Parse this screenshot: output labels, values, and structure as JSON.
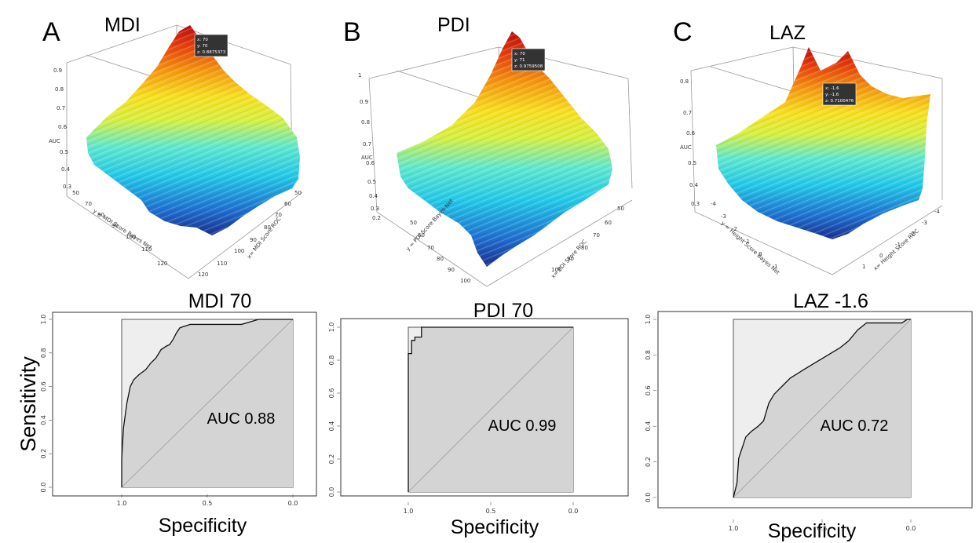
{
  "panels": [
    {
      "letter": "A",
      "surface_title": "MDI",
      "z_axis_label": "AUC",
      "z_ticks": [
        "0.9",
        "0.8",
        "0.7",
        "0.6",
        "0.5",
        "0.4",
        "0.3"
      ],
      "y_axis_label": "y = MDI Score Bayes Net",
      "x_axis_label": "x= MDI Score ROC",
      "y_ticks": [
        "50",
        "60",
        "70",
        "80",
        "90",
        "100",
        "110",
        "120"
      ],
      "x_ticks": [
        "50",
        "60",
        "70",
        "80",
        "90",
        "100",
        "110",
        "120"
      ],
      "tooltip": {
        "x": "x: 70",
        "y": "y: 70",
        "z": "z: 0.8875373"
      }
    },
    {
      "letter": "B",
      "surface_title": "PDI",
      "z_axis_label": "AUC",
      "z_ticks": [
        "1",
        "0.9",
        "0.8",
        "0.7",
        "0.6",
        "0.5",
        "0.4",
        "0.3",
        "0.2"
      ],
      "y_axis_label": "y = PDI Score Bayes Net",
      "x_axis_label": "x= PDI Score ROC",
      "y_ticks": [
        "50",
        "60",
        "70",
        "80",
        "90",
        "100"
      ],
      "x_ticks": [
        "50",
        "60",
        "70",
        "80",
        "90",
        "100"
      ],
      "tooltip": {
        "x": "x: 70",
        "y": "y: 71",
        "z": "z: 0.9759508"
      }
    },
    {
      "letter": "C",
      "surface_title": "LAZ",
      "z_axis_label": "AUC",
      "z_ticks": [
        "0.8",
        "0.7",
        "0.6",
        "0.5",
        "0.4",
        "0.3"
      ],
      "y_axis_label": "y = Height Score Bayes Net",
      "x_axis_label": "x= Height Score ROC",
      "y_ticks": [
        "-4",
        "-3",
        "-2",
        "-1",
        "0",
        "1"
      ],
      "x_ticks": [
        "-4",
        "-3",
        "-2",
        "-1",
        "0",
        "1"
      ],
      "tooltip": {
        "x": "x: -1.6",
        "y": "y: -1.6",
        "z": "z: 0.7100476"
      }
    }
  ],
  "shared_labels": {
    "sensitivity": "Sensitivity",
    "specificity": "Specificity"
  },
  "chart_data": [
    {
      "type": "line",
      "title": "MDI 70",
      "annotation": "AUC 0.88",
      "xlabel": "Specificity",
      "ylabel": "Sensitivity",
      "xlim": [
        1.0,
        0.0
      ],
      "ylim": [
        0.0,
        1.0
      ],
      "x_ticks": [
        "1.0",
        "0.5",
        "0.0"
      ],
      "y_ticks": [
        "0.0",
        "0.2",
        "0.4",
        "0.6",
        "0.8",
        "1.0"
      ],
      "reference_line": "diagonal",
      "x": [
        1.0,
        1.0,
        0.99,
        0.97,
        0.95,
        0.93,
        0.9,
        0.86,
        0.83,
        0.8,
        0.77,
        0.74,
        0.72,
        0.7,
        0.68,
        0.66,
        0.6,
        0.5,
        0.4,
        0.3,
        0.2,
        0.1,
        0.0
      ],
      "y": [
        0.0,
        0.17,
        0.35,
        0.5,
        0.6,
        0.64,
        0.67,
        0.7,
        0.74,
        0.77,
        0.82,
        0.84,
        0.85,
        0.88,
        0.92,
        0.95,
        0.97,
        0.97,
        0.97,
        0.97,
        1.0,
        1.0,
        1.0
      ]
    },
    {
      "type": "line",
      "title": "PDI 70",
      "annotation": "AUC 0.99",
      "xlabel": "Specificity",
      "ylabel": "",
      "xlim": [
        1.0,
        0.0
      ],
      "ylim": [
        0.0,
        1.0
      ],
      "x_ticks": [
        "1.0",
        "0.5",
        "0.0"
      ],
      "y_ticks": [
        "0.0",
        "0.2",
        "0.4",
        "0.6",
        "0.8",
        "1.0"
      ],
      "reference_line": "diagonal",
      "x": [
        1.0,
        1.0,
        0.98,
        0.98,
        0.96,
        0.96,
        0.92,
        0.92,
        0.5,
        0.0
      ],
      "y": [
        0.0,
        0.84,
        0.84,
        0.92,
        0.92,
        0.94,
        0.94,
        1.0,
        1.0,
        1.0
      ]
    },
    {
      "type": "line",
      "title": "LAZ -1.6",
      "annotation": "AUC 0.72",
      "xlabel": "Specificity",
      "ylabel": "",
      "xlim": [
        1.0,
        0.0
      ],
      "ylim": [
        0.0,
        1.0
      ],
      "x_ticks": [
        "1.0",
        "0.5",
        "0.0"
      ],
      "y_ticks": [
        "0.0",
        "0.2",
        "0.4",
        "0.6",
        "0.8",
        "1.0"
      ],
      "reference_line": "diagonal",
      "x": [
        1.0,
        0.98,
        0.97,
        0.95,
        0.93,
        0.9,
        0.86,
        0.83,
        0.8,
        0.77,
        0.72,
        0.68,
        0.6,
        0.5,
        0.4,
        0.35,
        0.3,
        0.25,
        0.15,
        0.05,
        0.02,
        0.0
      ],
      "y": [
        0.0,
        0.08,
        0.22,
        0.28,
        0.34,
        0.37,
        0.4,
        0.43,
        0.53,
        0.58,
        0.63,
        0.67,
        0.72,
        0.78,
        0.84,
        0.88,
        0.94,
        0.98,
        0.98,
        0.98,
        1.0,
        1.0
      ]
    }
  ]
}
